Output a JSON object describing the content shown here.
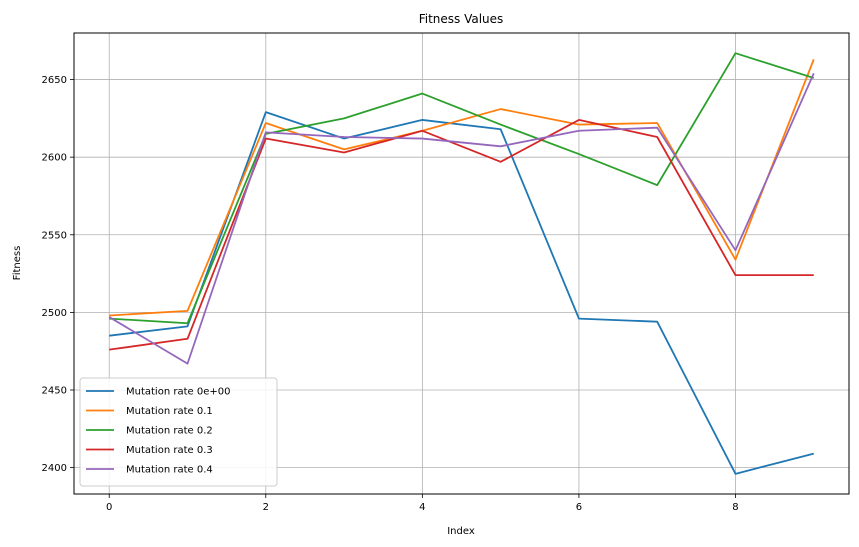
{
  "chart_data": {
    "type": "line",
    "title": "Fitness Values",
    "xlabel": "Index",
    "ylabel": "Fitness",
    "x": [
      0,
      1,
      2,
      3,
      4,
      5,
      6,
      7,
      8,
      9
    ],
    "xlim": [
      -0.45,
      9.45
    ],
    "ylim": [
      2383,
      2680
    ],
    "xticks": [
      0,
      2,
      4,
      6,
      8
    ],
    "yticks": [
      2400,
      2450,
      2500,
      2550,
      2600,
      2650
    ],
    "grid": true,
    "legend_position": "lower-left",
    "series": [
      {
        "name": "Mutation rate 0e+00",
        "color": "#1f77b4",
        "values": [
          2485,
          2491,
          2629,
          2612,
          2624,
          2618,
          2496,
          2494,
          2396,
          2409
        ]
      },
      {
        "name": "Mutation rate 0.1",
        "color": "#ff7f0e",
        "values": [
          2498,
          2501,
          2622,
          2605,
          2617,
          2631,
          2621,
          2622,
          2534,
          2663
        ]
      },
      {
        "name": "Mutation rate 0.2",
        "color": "#2ca02c",
        "values": [
          2496,
          2493,
          2615,
          2625,
          2641,
          2621,
          2602,
          2582,
          2667,
          2651
        ]
      },
      {
        "name": "Mutation rate 0.3",
        "color": "#d62728",
        "values": [
          2476,
          2483,
          2612,
          2603,
          2617,
          2597,
          2624,
          2613,
          2524,
          2524
        ]
      },
      {
        "name": "Mutation rate 0.4",
        "color": "#9467bd",
        "values": [
          2497,
          2467,
          2616,
          2613,
          2612,
          2607,
          2617,
          2619,
          2540,
          2654
        ]
      }
    ]
  }
}
